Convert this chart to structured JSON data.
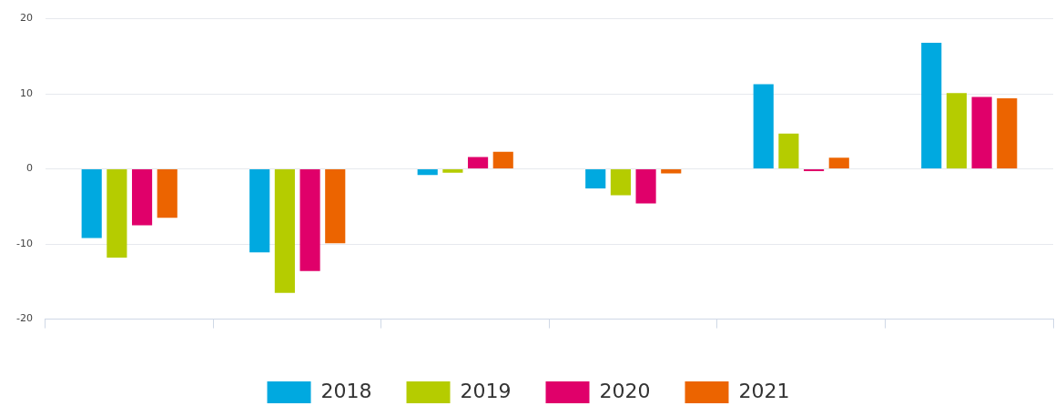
{
  "chart_data": {
    "type": "bar",
    "categories": [
      null,
      null,
      null,
      null,
      null,
      null
    ],
    "series": [
      {
        "name": "2018",
        "color": "#00a9e0",
        "values": [
          -9.2,
          -11.1,
          -0.8,
          -2.6,
          11.3,
          16.8
        ]
      },
      {
        "name": "2019",
        "color": "#b5cc00",
        "values": [
          -11.8,
          -16.5,
          -0.5,
          -3.5,
          4.7,
          10.1
        ]
      },
      {
        "name": "2020",
        "color": "#e0006a",
        "values": [
          -7.5,
          -13.6,
          1.6,
          -4.6,
          -0.3,
          9.6
        ]
      },
      {
        "name": "2021",
        "color": "#ec6400",
        "values": [
          -6.5,
          -9.9,
          2.3,
          -0.6,
          1.5,
          9.4
        ]
      }
    ],
    "ylim": [
      -20,
      20
    ],
    "yticks": [
      -20,
      -10,
      0,
      10,
      20
    ],
    "grid": "y",
    "legend": "bottom"
  }
}
